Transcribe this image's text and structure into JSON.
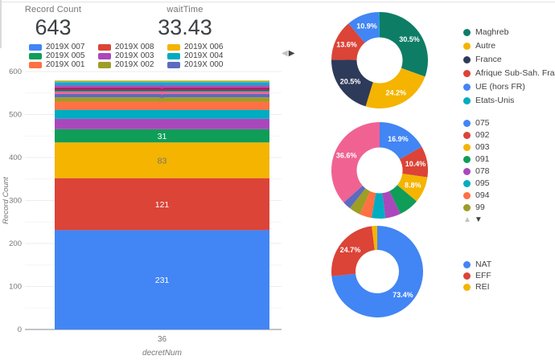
{
  "scorecards": [
    {
      "label": "Record Count",
      "value": "643"
    },
    {
      "label": "waitTime",
      "value": "33.43"
    }
  ],
  "bar_legend": {
    "items": [
      {
        "label": "2019X 007",
        "color": "#4285F4"
      },
      {
        "label": "2019X 008",
        "color": "#DB4437"
      },
      {
        "label": "2019X 006",
        "color": "#F4B400"
      },
      {
        "label": "2019X 005",
        "color": "#0F9D58"
      },
      {
        "label": "2019X 003",
        "color": "#AB47BC"
      },
      {
        "label": "2019X 004",
        "color": "#00ACC1"
      },
      {
        "label": "2019X 001",
        "color": "#FF7043"
      },
      {
        "label": "2019X 002",
        "color": "#9E9D24"
      },
      {
        "label": "2019X 000",
        "color": "#5C6BC0"
      }
    ],
    "pager": {
      "prev": "◀",
      "next": "▶"
    }
  },
  "chart_data": [
    {
      "type": "bar",
      "stacked": true,
      "title": "",
      "xlabel": "decretNum",
      "ylabel": "Record Count",
      "categories": [
        "36"
      ],
      "ylim": [
        0,
        600
      ],
      "yticks": [
        0,
        100,
        200,
        300,
        400,
        500,
        600
      ],
      "grid": true,
      "series": [
        {
          "name": "2019X 007",
          "value": 231,
          "color": "#4285F4"
        },
        {
          "name": "2019X 008",
          "value": 121,
          "color": "#DB4437"
        },
        {
          "name": "2019X 006",
          "value": 83,
          "color": "#F4B400"
        },
        {
          "name": "2019X 005",
          "value": 31,
          "color": "#0F9D58"
        },
        {
          "name": "2019X 003",
          "value": 24,
          "color": "#AB47BC"
        },
        {
          "name": "2019X 004",
          "value": 21,
          "color": "#00ACC1"
        },
        {
          "name": "2019X 001",
          "value": 19,
          "color": "#FF7043"
        },
        {
          "name": "2019X 002",
          "value": 10,
          "color": "#9E9D24"
        },
        {
          "name": "2019X 000",
          "value": 8,
          "color": "#5C6BC0"
        },
        {
          "name": "",
          "value": 6,
          "color": "#F06292"
        },
        {
          "name": "",
          "value": 4,
          "color": "#00796B"
        },
        {
          "name": "",
          "value": 5,
          "color": "#C2185B"
        },
        {
          "name": "",
          "value": 5,
          "color": "#AB47BC"
        },
        {
          "name": "",
          "value": 3,
          "color": "#00ACC1"
        },
        {
          "name": "",
          "value": 4,
          "color": "#03A9F4"
        },
        {
          "name": "",
          "value": 4,
          "color": "#AFB42B"
        }
      ]
    },
    {
      "type": "pie",
      "title": "",
      "legend_position": "right",
      "label_min_pct": 8,
      "slices": [
        {
          "label": "Maghreb",
          "value": 30.5,
          "color": "#0d7d66",
          "legend": true
        },
        {
          "label": "Autre",
          "value": 24.2,
          "color": "#F4B400",
          "legend": true
        },
        {
          "label": "France",
          "value": 20.5,
          "color": "#2e3a59",
          "legend": true
        },
        {
          "label": "Afrique Sub-Sah. Franco.",
          "value": 13.6,
          "color": "#DB4437",
          "legend": true
        },
        {
          "label": "UE (hors FR)",
          "value": 10.9,
          "color": "#4285F4",
          "legend": true
        },
        {
          "label": "Etats-Unis",
          "value": 0.3,
          "color": "#00ACC1",
          "legend": true
        }
      ]
    },
    {
      "type": "pie",
      "title": "",
      "legend_position": "right",
      "label_min_pct": 8,
      "pager": {
        "up": "▲",
        "down": "▼"
      },
      "slices": [
        {
          "label": "075",
          "value": 16.9,
          "color": "#4285F4",
          "legend": true
        },
        {
          "label": "092",
          "value": 10.4,
          "color": "#DB4437",
          "legend": true
        },
        {
          "label": "093",
          "value": 8.8,
          "color": "#F4B400",
          "legend": true
        },
        {
          "label": "091",
          "value": 6.8,
          "color": "#0F9D58",
          "legend": true
        },
        {
          "label": "078",
          "value": 5.2,
          "color": "#AB47BC",
          "legend": true
        },
        {
          "label": "095",
          "value": 4.6,
          "color": "#00ACC1",
          "legend": true
        },
        {
          "label": "094",
          "value": 4.1,
          "color": "#FF7043",
          "legend": true
        },
        {
          "label": "99",
          "value": 3.8,
          "color": "#9E9D24",
          "legend": true
        },
        {
          "label": "",
          "value": 2.8,
          "color": "#5C6BC0",
          "legend": false
        },
        {
          "label": "",
          "value": 36.6,
          "color": "#F06292",
          "legend": false
        }
      ]
    },
    {
      "type": "pie",
      "title": "",
      "legend_position": "right",
      "label_min_pct": 8,
      "slices": [
        {
          "label": "NAT",
          "value": 73.4,
          "color": "#4285F4",
          "legend": true
        },
        {
          "label": "EFF",
          "value": 24.7,
          "color": "#DB4437",
          "legend": true
        },
        {
          "label": "REI",
          "value": 1.9,
          "color": "#F4B400",
          "legend": true
        }
      ]
    }
  ]
}
